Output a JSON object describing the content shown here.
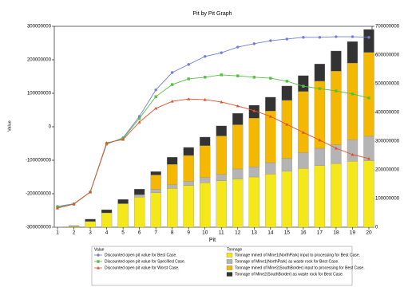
{
  "chart_data": {
    "type": "combo",
    "title": "Pit by Pit Graph",
    "x_label": "Pit",
    "y_label": "Value",
    "categories": [
      "1",
      "2",
      "3",
      "4",
      "5",
      "6",
      "7",
      "8",
      "9",
      "10",
      "11",
      "12",
      "13",
      "14",
      "15",
      "16",
      "17",
      "18",
      "19",
      "20"
    ],
    "ylim": [
      -300000000,
      300000000
    ],
    "yticks": [
      -300000000,
      -200000000,
      -100000000,
      0,
      100000000,
      200000000,
      300000000
    ],
    "y2lim": [
      0,
      700000000
    ],
    "y2ticks": [
      0,
      100000000,
      200000000,
      300000000,
      400000000,
      500000000,
      600000000,
      700000000
    ],
    "legend_groups": [
      "Value",
      "Tonnage"
    ],
    "series": [
      {
        "name": "Discounted open pit value for Best Case.",
        "type": "line",
        "marker": "circle",
        "color": "#6f7fd8",
        "values": [
          -238000000,
          -230000000,
          -195000000,
          -52000000,
          -33000000,
          31000000,
          110000000,
          162000000,
          186000000,
          210000000,
          221000000,
          238000000,
          248000000,
          257000000,
          262000000,
          267000000,
          267000000,
          269000000,
          269000000,
          267000000
        ]
      },
      {
        "name": "Discounted open pit value for Specified Case.",
        "type": "line",
        "marker": "square",
        "color": "#55c040",
        "values": [
          -240000000,
          -231000000,
          -195000000,
          -50000000,
          -35000000,
          25000000,
          90000000,
          126000000,
          143000000,
          148000000,
          155000000,
          152000000,
          148000000,
          145000000,
          136000000,
          121000000,
          114000000,
          107000000,
          98000000,
          86000000
        ]
      },
      {
        "name": "Discounted open pit value for Worst Case.",
        "type": "line",
        "marker": "triangle",
        "color": "#e05030",
        "values": [
          -243000000,
          -231000000,
          -195000000,
          -48000000,
          -38000000,
          14000000,
          55000000,
          76000000,
          83000000,
          81000000,
          74000000,
          62000000,
          48000000,
          31000000,
          7000000,
          -17000000,
          -40000000,
          -64000000,
          -83000000,
          -95000000
        ]
      },
      {
        "name": "Tonnage mined of Mine1(NorthPark) input to processing for Best Case.",
        "type": "bar",
        "axis": "y2",
        "color": "#f5e81a",
        "values": [
          500000,
          3000000,
          20000000,
          50000000,
          82000000,
          105000000,
          120000000,
          135000000,
          145000000,
          155000000,
          162000000,
          168000000,
          175000000,
          185000000,
          195000000,
          205000000,
          215000000,
          222000000,
          230000000,
          232000000
        ]
      },
      {
        "name": "Tonnage of Mine1(NorthPark) as waste rock for Best Case.",
        "type": "bar",
        "axis": "y2",
        "color": "#b4b4b4",
        "values": [
          0,
          0,
          0,
          0,
          0,
          8000000,
          12000000,
          13000000,
          15000000,
          18000000,
          22000000,
          35000000,
          35000000,
          40000000,
          45000000,
          55000000,
          60000000,
          65000000,
          75000000,
          85000000
        ]
      },
      {
        "name": "Tonnage mined of Mine2(SouthBorder) input to processing for Best Case.",
        "type": "bar",
        "axis": "y2",
        "color": "#f5b800",
        "values": [
          0,
          0,
          0,
          0,
          0,
          0,
          50000000,
          71000000,
          90000000,
          111000000,
          134000000,
          154000000,
          170000000,
          180000000,
          202000000,
          213000000,
          234000000,
          257000000,
          267000000,
          292000000
        ]
      },
      {
        "name": "Tonnage of Mine2(SouthBorder) as waste rock for Best Case.",
        "type": "bar",
        "axis": "y2",
        "color": "#333333",
        "values": [
          500000,
          2000000,
          8000000,
          11000000,
          15000000,
          20000000,
          12000000,
          25000000,
          28000000,
          30000000,
          35000000,
          40000000,
          45000000,
          48000000,
          50000000,
          55000000,
          60000000,
          70000000,
          75000000,
          80000000
        ]
      }
    ]
  }
}
